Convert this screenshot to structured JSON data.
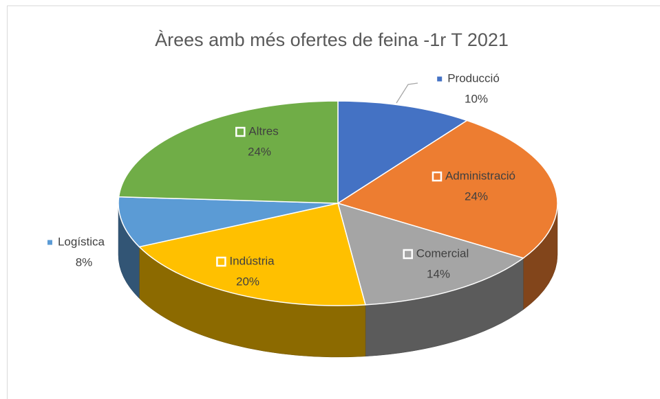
{
  "chart_data": {
    "type": "pie",
    "title": "Àrees amb més ofertes de feina -1r T 2021",
    "categories": [
      "Producció",
      "Administració",
      "Comercial",
      "Indústria",
      "Logística",
      "Altres"
    ],
    "values": [
      10,
      24,
      14,
      20,
      8,
      24
    ],
    "value_labels": [
      "10%",
      "24%",
      "14%",
      "20%",
      "8%",
      "24%"
    ],
    "colors": [
      "#4472c4",
      "#ed7d31",
      "#a5a5a5",
      "#ffc000",
      "#5b9bd5",
      "#70ad47"
    ]
  }
}
